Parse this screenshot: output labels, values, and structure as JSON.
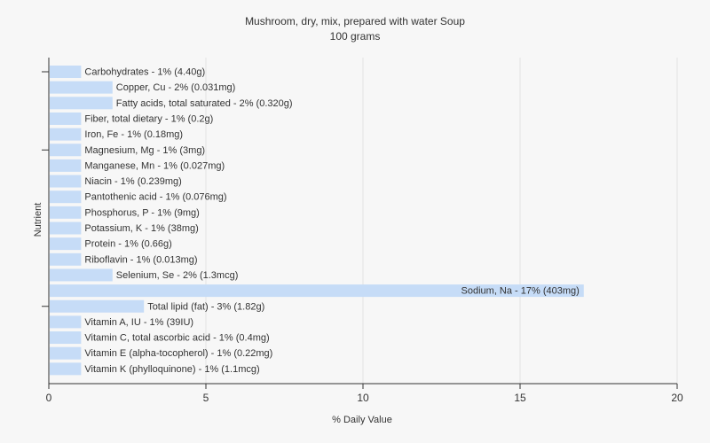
{
  "chart_data": {
    "type": "bar",
    "orientation": "horizontal",
    "title": "Mushroom, dry, mix, prepared with water Soup",
    "subtitle": "100 grams",
    "xlabel": "% Daily Value",
    "ylabel": "Nutrient",
    "xlim": [
      0,
      20
    ],
    "xticks": [
      0,
      5,
      10,
      15,
      20
    ],
    "grid": true,
    "bar_color": "#c6dcf7",
    "categories": [
      "Carbohydrates",
      "Copper, Cu",
      "Fatty acids, total saturated",
      "Fiber, total dietary",
      "Iron, Fe",
      "Magnesium, Mg",
      "Manganese, Mn",
      "Niacin",
      "Pantothenic acid",
      "Phosphorus, P",
      "Potassium, K",
      "Protein",
      "Riboflavin",
      "Selenium, Se",
      "Sodium, Na",
      "Total lipid (fat)",
      "Vitamin A, IU",
      "Vitamin C, total ascorbic acid",
      "Vitamin E (alpha-tocopherol)",
      "Vitamin K (phylloquinone)"
    ],
    "values": [
      1,
      2,
      2,
      1,
      1,
      1,
      1,
      1,
      1,
      1,
      1,
      1,
      1,
      2,
      17,
      3,
      1,
      1,
      1,
      1
    ],
    "labels": [
      "Carbohydrates - 1% (4.40g)",
      "Copper, Cu - 2% (0.031mg)",
      "Fatty acids, total saturated - 2% (0.320g)",
      "Fiber, total dietary - 1% (0.2g)",
      "Iron, Fe - 1% (0.18mg)",
      "Magnesium, Mg - 1% (3mg)",
      "Manganese, Mn - 1% (0.027mg)",
      "Niacin - 1% (0.239mg)",
      "Pantothenic acid - 1% (0.076mg)",
      "Phosphorus, P - 1% (9mg)",
      "Potassium, K - 1% (38mg)",
      "Protein - 1% (0.66g)",
      "Riboflavin - 1% (0.013mg)",
      "Selenium, Se - 2% (1.3mcg)",
      "Sodium, Na - 17% (403mg)",
      "Total lipid (fat) - 3% (1.82g)",
      "Vitamin A, IU - 1% (39IU)",
      "Vitamin C, total ascorbic acid - 1% (0.4mg)",
      "Vitamin E (alpha-tocopherol) - 1% (0.22mg)",
      "Vitamin K (phylloquinone) - 1% (1.1mcg)"
    ]
  }
}
